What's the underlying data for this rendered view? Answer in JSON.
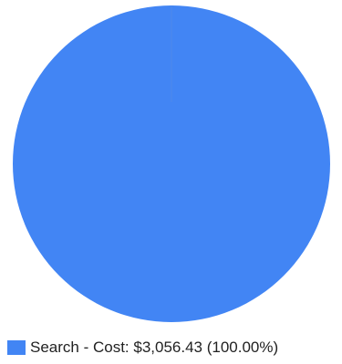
{
  "chart_data": {
    "type": "pie",
    "slices": [
      {
        "label": "Search - Cost: $3,056.43 (100.00%)",
        "value": 3056.43,
        "percent": 100.0,
        "color": "#4285f4"
      }
    ],
    "legend_position": "bottom-left"
  }
}
